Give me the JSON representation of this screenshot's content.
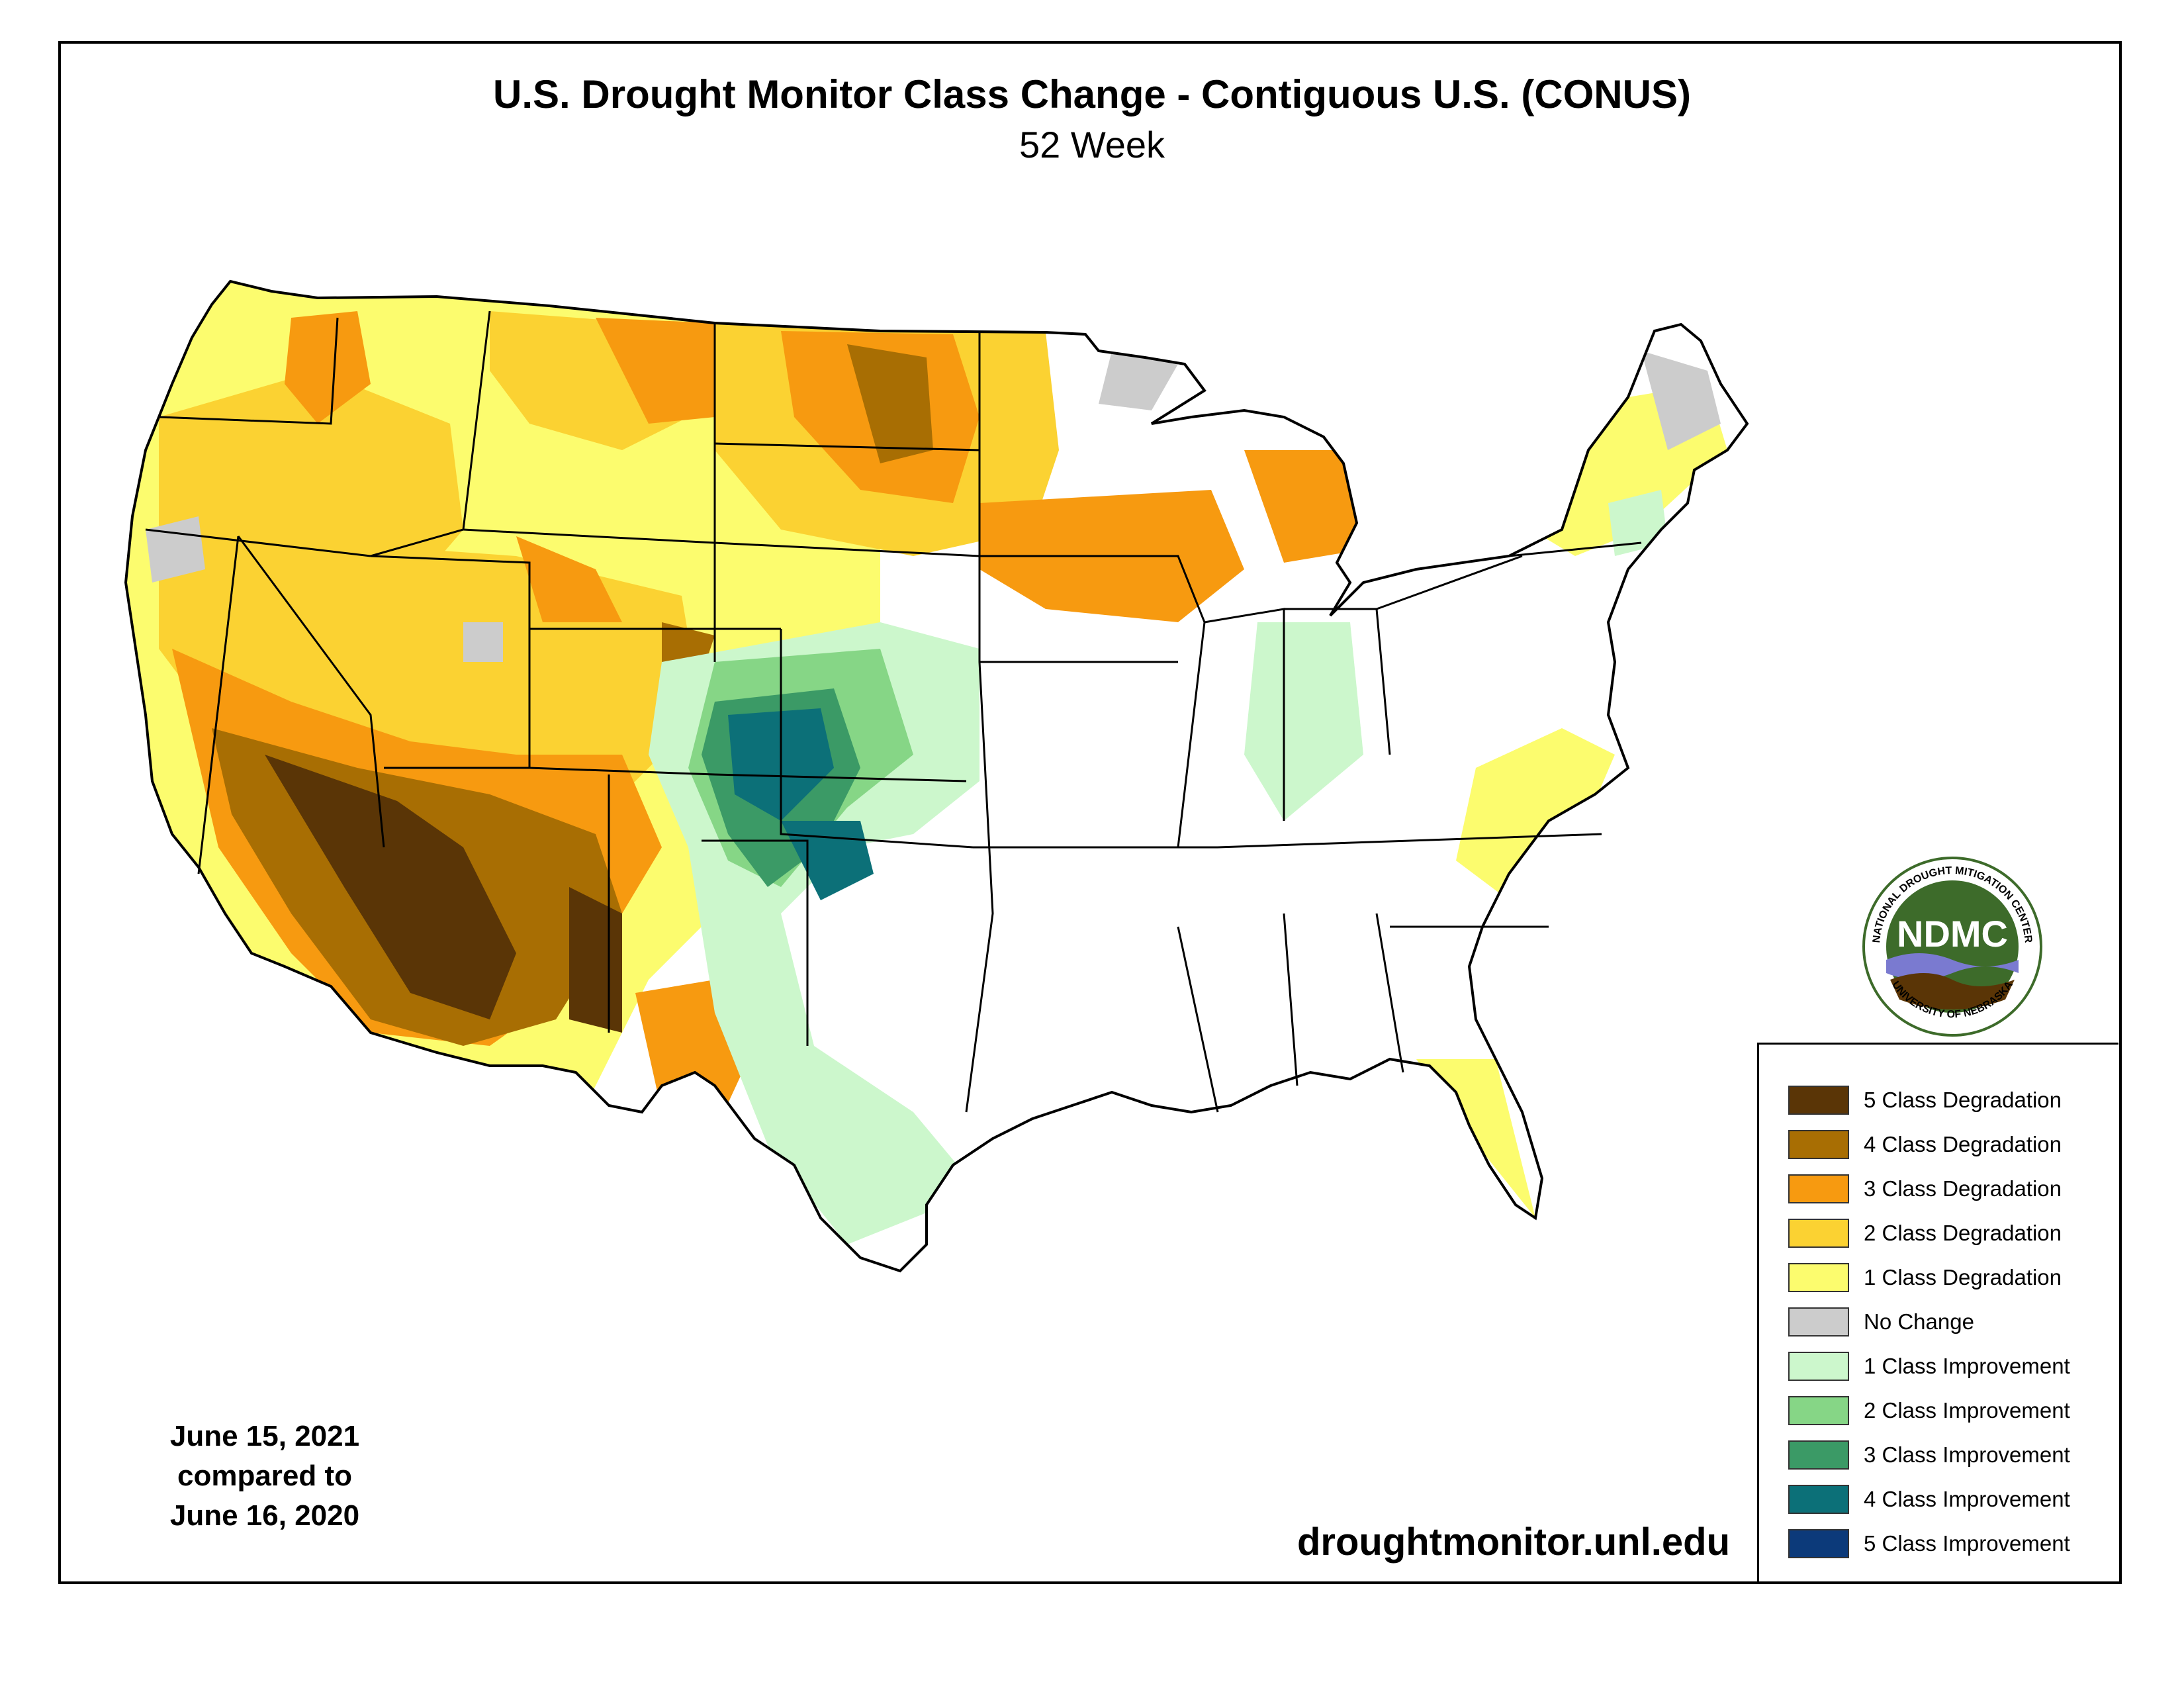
{
  "title": "U.S. Drought Monitor Class Change - Contiguous U.S. (CONUS)",
  "subtitle": "52 Week",
  "dates": {
    "line1": "June 15, 2021",
    "line2": "compared to",
    "line3": "June 16, 2020"
  },
  "website": "droughtmonitor.unl.edu",
  "logo": {
    "name": "ndmc-logo",
    "text": "NDMC",
    "ring_top": "NATIONAL DROUGHT MITIGATION CENTER",
    "ring_bottom": "UNIVERSITY OF NEBRASKA"
  },
  "legend": [
    {
      "label": "5 Class Degradation",
      "color": "#5a3506"
    },
    {
      "label": "4 Class Degradation",
      "color": "#a86e03"
    },
    {
      "label": "3 Class Degradation",
      "color": "#f79a10"
    },
    {
      "label": "2 Class Degradation",
      "color": "#fbd232"
    },
    {
      "label": "1 Class Degradation",
      "color": "#fcfc6e"
    },
    {
      "label": "No Change",
      "color": "#cccccc"
    },
    {
      "label": "1 Class Improvement",
      "color": "#ccf7cc"
    },
    {
      "label": "2 Class Improvement",
      "color": "#86d686"
    },
    {
      "label": "3 Class Improvement",
      "color": "#3b9a66"
    },
    {
      "label": "4 Class Improvement",
      "color": "#0c7078"
    },
    {
      "label": "5 Class Improvement",
      "color": "#0c3a7a"
    }
  ]
}
